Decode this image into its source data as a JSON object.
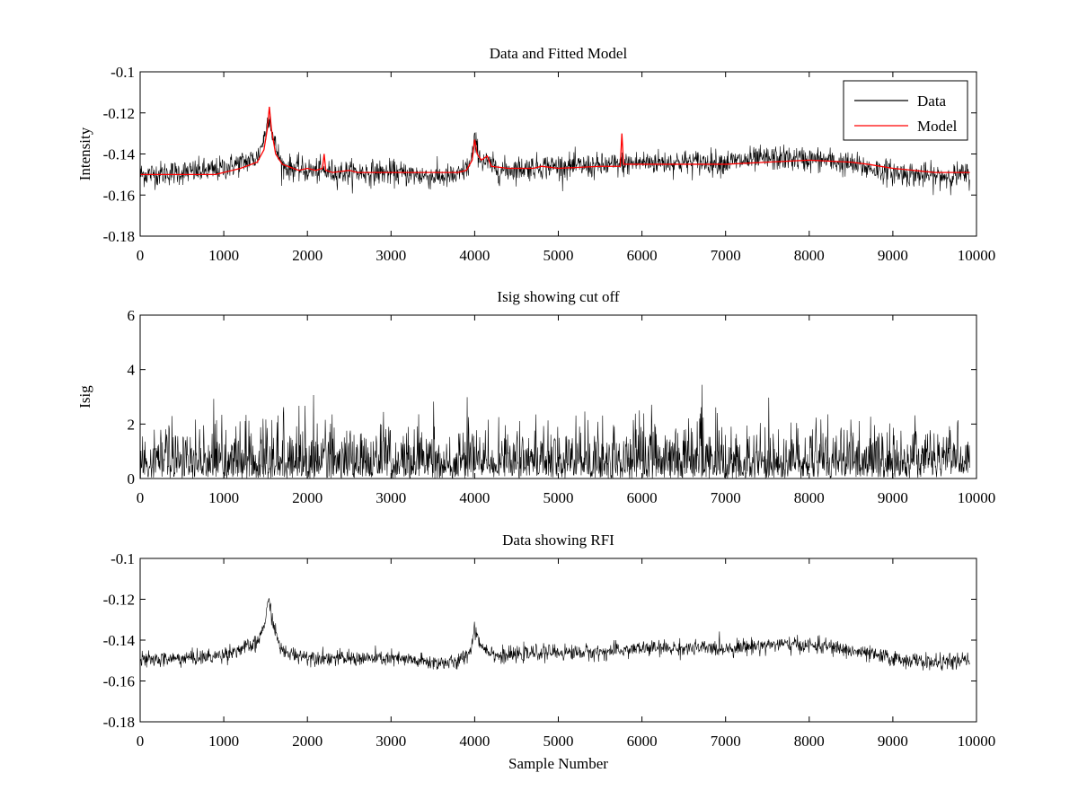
{
  "chart_data": [
    {
      "type": "line",
      "title": "Data and Fitted Model",
      "xlabel": "",
      "ylabel": "Intensity",
      "xlim": [
        0,
        10000
      ],
      "ylim": [
        -0.18,
        -0.1
      ],
      "xticks": [
        0,
        1000,
        2000,
        3000,
        4000,
        5000,
        6000,
        7000,
        8000,
        9000,
        10000
      ],
      "yticks": [
        -0.1,
        -0.12,
        -0.14,
        -0.16,
        -0.18
      ],
      "xtick_labels": [
        "0",
        "1000",
        "2000",
        "3000",
        "4000",
        "5000",
        "6000",
        "7000",
        "8000",
        "9000",
        "10000"
      ],
      "ytick_labels": [
        "-0.1",
        "-0.12",
        "-0.14",
        "-0.16",
        "-0.18"
      ],
      "legend": {
        "placement": "top-right",
        "entries": [
          "Data",
          "Model"
        ]
      },
      "series": [
        {
          "name": "Data",
          "color": "#000000",
          "style": "noise",
          "noise": 0.0055,
          "x": [
            0,
            900,
            1400,
            1500,
            1540,
            1600,
            1700,
            2000,
            2400,
            3000,
            3500,
            3800,
            3950,
            4000,
            4080,
            4300,
            4800,
            5500,
            5760,
            6000,
            7000,
            7600,
            8200,
            8600,
            9000,
            9500,
            9920
          ],
          "y": [
            -0.15,
            -0.148,
            -0.142,
            -0.13,
            -0.12,
            -0.134,
            -0.146,
            -0.148,
            -0.149,
            -0.149,
            -0.151,
            -0.151,
            -0.145,
            -0.134,
            -0.143,
            -0.148,
            -0.146,
            -0.146,
            -0.145,
            -0.144,
            -0.144,
            -0.142,
            -0.143,
            -0.146,
            -0.149,
            -0.151,
            -0.15
          ]
        },
        {
          "name": "Model",
          "color": "#ff0000",
          "style": "line",
          "x": [
            0,
            900,
            1000,
            1200,
            1400,
            1480,
            1520,
            1545,
            1570,
            1620,
            1700,
            1900,
            2000,
            2100,
            2180,
            2200,
            2220,
            2300,
            2500,
            2600,
            3000,
            3500,
            3800,
            3900,
            3970,
            4000,
            4030,
            4080,
            4150,
            4200,
            4400,
            4700,
            4800,
            5000,
            5500,
            5740,
            5760,
            5780,
            6000,
            6500,
            7000,
            7500,
            8000,
            8500,
            8700,
            9000,
            9500,
            9920
          ],
          "y": [
            -0.15,
            -0.15,
            -0.149,
            -0.147,
            -0.144,
            -0.138,
            -0.128,
            -0.117,
            -0.128,
            -0.14,
            -0.145,
            -0.148,
            -0.147,
            -0.148,
            -0.147,
            -0.14,
            -0.148,
            -0.149,
            -0.148,
            -0.149,
            -0.149,
            -0.149,
            -0.149,
            -0.148,
            -0.143,
            -0.133,
            -0.14,
            -0.143,
            -0.141,
            -0.146,
            -0.147,
            -0.147,
            -0.146,
            -0.147,
            -0.146,
            -0.146,
            -0.13,
            -0.145,
            -0.145,
            -0.145,
            -0.145,
            -0.144,
            -0.143,
            -0.144,
            -0.145,
            -0.147,
            -0.149,
            -0.149
          ]
        }
      ]
    },
    {
      "type": "line",
      "title": "Isig showing cut off",
      "xlabel": "",
      "ylabel": "Isig",
      "xlim": [
        0,
        10000
      ],
      "ylim": [
        0,
        6
      ],
      "xticks": [
        0,
        1000,
        2000,
        3000,
        4000,
        5000,
        6000,
        7000,
        8000,
        9000,
        10000
      ],
      "yticks": [
        0,
        2,
        4,
        6
      ],
      "xtick_labels": [
        "0",
        "1000",
        "2000",
        "3000",
        "4000",
        "5000",
        "6000",
        "7000",
        "8000",
        "9000",
        "10000"
      ],
      "ytick_labels": [
        "0",
        "2",
        "4",
        "6"
      ],
      "series": [
        {
          "color": "#000000",
          "style": "abs-noise",
          "noise": 0.9,
          "x": [
            0,
            9920
          ],
          "y": [
            0,
            0
          ]
        }
      ]
    },
    {
      "type": "line",
      "title": "Data showing RFI",
      "xlabel": "Sample Number",
      "ylabel": "",
      "xlim": [
        0,
        10000
      ],
      "ylim": [
        -0.18,
        -0.1
      ],
      "xticks": [
        0,
        1000,
        2000,
        3000,
        4000,
        5000,
        6000,
        7000,
        8000,
        9000,
        10000
      ],
      "yticks": [
        -0.1,
        -0.12,
        -0.14,
        -0.16,
        -0.18
      ],
      "xtick_labels": [
        "0",
        "1000",
        "2000",
        "3000",
        "4000",
        "5000",
        "6000",
        "7000",
        "8000",
        "9000",
        "10000"
      ],
      "ytick_labels": [
        "-0.1",
        "-0.12",
        "-0.14",
        "-0.16",
        "-0.18"
      ],
      "series": [
        {
          "color": "#000000",
          "style": "noise",
          "noise": 0.0035,
          "x": [
            0,
            900,
            1400,
            1500,
            1540,
            1600,
            1700,
            2000,
            2400,
            3000,
            3500,
            3800,
            3950,
            4000,
            4080,
            4300,
            4800,
            5500,
            5760,
            6000,
            7000,
            7600,
            8200,
            8600,
            9000,
            9500,
            9920
          ],
          "y": [
            -0.15,
            -0.148,
            -0.142,
            -0.13,
            -0.12,
            -0.134,
            -0.146,
            -0.148,
            -0.149,
            -0.149,
            -0.151,
            -0.151,
            -0.145,
            -0.134,
            -0.143,
            -0.148,
            -0.146,
            -0.146,
            -0.145,
            -0.144,
            -0.144,
            -0.142,
            -0.143,
            -0.146,
            -0.149,
            -0.151,
            -0.15
          ]
        }
      ]
    }
  ]
}
